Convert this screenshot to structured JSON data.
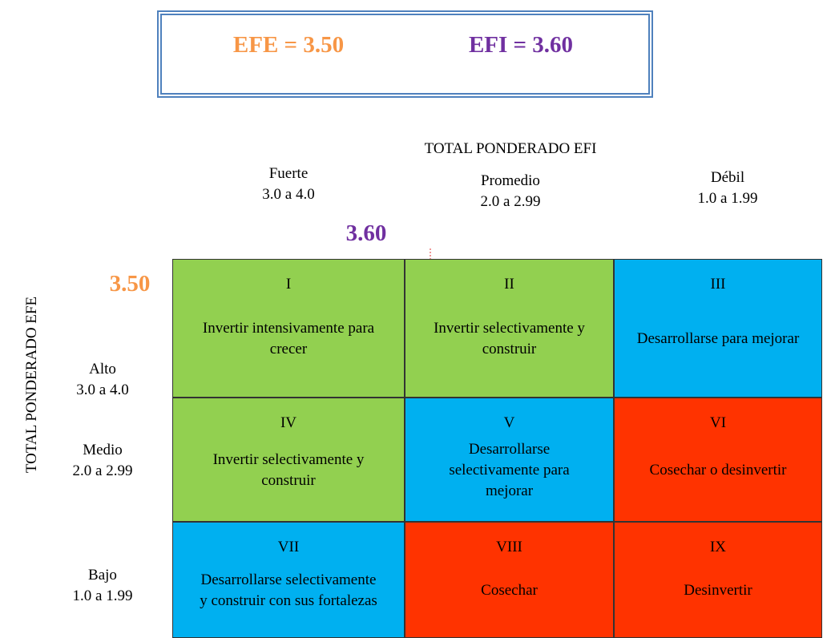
{
  "header": {
    "efe": "EFE = 3.50",
    "efi": "EFI = 3.60"
  },
  "x_axis": {
    "title": "TOTAL PONDERADO EFI",
    "columns": [
      {
        "name": "Fuerte",
        "range": "3.0 a 4.0"
      },
      {
        "name": "Promedio",
        "range": "2.0 a 2.99"
      },
      {
        "name": "Débil",
        "range": "1.0 a 1.99"
      }
    ]
  },
  "y_axis": {
    "title": "TOTAL PONDERADO EFE",
    "rows": [
      {
        "name": "Alto",
        "range": "3.0 a 4.0"
      },
      {
        "name": "Medio",
        "range": "2.0 a 2.99"
      },
      {
        "name": "Bajo",
        "range": "1.0 a 1.99"
      }
    ]
  },
  "markers": {
    "efi": "3.60",
    "efe": "3.50"
  },
  "cells": [
    {
      "numeral": "I",
      "text": "Invertir intensivamente para crecer",
      "color": "#92d050"
    },
    {
      "numeral": "II",
      "text": "Invertir selectivamente y construir",
      "color": "#92d050"
    },
    {
      "numeral": "III",
      "text": "Desarrollarse para mejorar",
      "color": "#00b0f0"
    },
    {
      "numeral": "IV",
      "text": "Invertir selectivamente y construir",
      "color": "#92d050"
    },
    {
      "numeral": "V",
      "text": "Desarrollarse selectivamente para mejorar",
      "color": "#00b0f0"
    },
    {
      "numeral": "VI",
      "text": "Cosechar o desinvertir",
      "color": "#ff3300"
    },
    {
      "numeral": "VII",
      "text": "Desarrollarse selectivamente y construir con sus fortalezas",
      "color": "#00b0f0"
    },
    {
      "numeral": "VIII",
      "text": "Cosechar",
      "color": "#ff3300"
    },
    {
      "numeral": "IX",
      "text": "Desinvertir",
      "color": "#ff3300"
    }
  ]
}
